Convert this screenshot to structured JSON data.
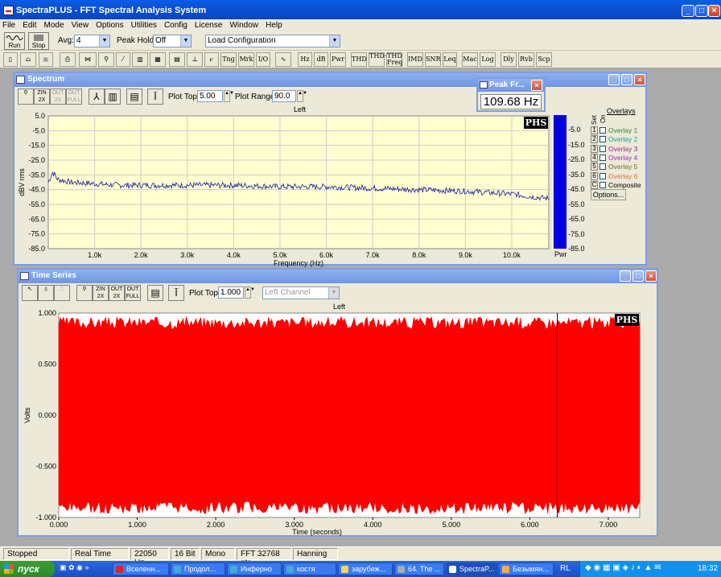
{
  "app": {
    "title": "SpectraPLUS - FFT Spectral Analysis System",
    "menu": [
      "File",
      "Edit",
      "Mode",
      "View",
      "Options",
      "Utilities",
      "Config",
      "License",
      "Window",
      "Help"
    ]
  },
  "toolbar": {
    "run_label": "Run",
    "stop_label": "Stop",
    "avg_label": "Avg:",
    "avg_value": "4",
    "peak_hold_label": "Peak Hold:",
    "peak_hold_value": "Off",
    "load_config_value": "Load Configuration",
    "buttons2": [
      "Tng",
      "Mrk",
      "I/O",
      "Hz",
      "dB",
      "Pwr",
      "THD",
      "THD+N",
      "THD Freq",
      "IMD",
      "SNR",
      "Leq",
      "Mac",
      "Log",
      "Dly",
      "Rvb",
      "Scp"
    ]
  },
  "spectrum": {
    "title": "Spectrum",
    "plot_top_label": "Plot Top:",
    "plot_top_value": "5.00",
    "plot_range_label": "Plot Range:",
    "plot_range_value": "90.0",
    "channel_label": "Left",
    "phs_badge": "PHS",
    "pwr_label": "Pwr",
    "overlays_title": "Overlays",
    "set_label": "Set",
    "on_label": "On",
    "overlays": [
      {
        "num": "1",
        "name": "Overlay 1",
        "color": "#2e8b2e"
      },
      {
        "num": "2",
        "name": "Overlay 2",
        "color": "#20a0a0"
      },
      {
        "num": "3",
        "name": "Overlay 3",
        "color": "#a020a0"
      },
      {
        "num": "4",
        "name": "Overlay 4",
        "color": "#b020d0"
      },
      {
        "num": "5",
        "name": "Overlay 5",
        "color": "#707020"
      },
      {
        "num": "6",
        "name": "Overlay 6",
        "color": "#e07030"
      },
      {
        "num": "C",
        "name": "Composite",
        "color": "#000000"
      }
    ],
    "options_label": "Options...",
    "bar_scale": [
      "-5.0",
      "-15.0",
      "-25.0",
      "-35.0",
      "-45.0",
      "-55.0",
      "-65.0",
      "-75.0",
      "-85.0"
    ],
    "bar_level_db": 5.0
  },
  "peak_window": {
    "title": "Peak Fr...",
    "value": "109.68 Hz"
  },
  "time_series": {
    "title": "Time Series",
    "plot_top_label": "Plot Top:",
    "plot_top_value": "1.000",
    "channel_select": "Left Channel",
    "channel_label": "Left",
    "phs_badge": "PHS"
  },
  "chart_data": [
    {
      "type": "line",
      "title": "Left",
      "xlabel": "Frequency (Hz)",
      "ylabel": "dBV rms",
      "xlim": [
        0,
        10800
      ],
      "ylim": [
        -85,
        5
      ],
      "grid": true,
      "x_ticks": [
        "1.0k",
        "2.0k",
        "3.0k",
        "4.0k",
        "5.0k",
        "6.0k",
        "7.0k",
        "8.0k",
        "9.0k",
        "10.0k"
      ],
      "y_ticks": [
        "5.0",
        "-5.0",
        "-15.0",
        "-25.0",
        "-35.0",
        "-45.0",
        "-55.0",
        "-65.0",
        "-75.0",
        "-85.0"
      ],
      "x": [
        0,
        100,
        200,
        500,
        1000,
        1500,
        2000,
        3000,
        4000,
        5000,
        6000,
        7000,
        8000,
        9000,
        10000,
        10500,
        10800
      ],
      "y": [
        -40,
        -33,
        -38,
        -40,
        -41,
        -42,
        -42,
        -42,
        -42,
        -43,
        -43,
        -44,
        -45,
        -46,
        -48,
        -50,
        -51
      ]
    },
    {
      "type": "area",
      "title": "Left",
      "xlabel": "Time (seconds)",
      "ylabel": "Volts",
      "xlim": [
        0,
        7.4
      ],
      "ylim": [
        -1,
        1
      ],
      "grid": false,
      "x_ticks": [
        "0.000",
        "1.000",
        "2.000",
        "3.000",
        "4.000",
        "5.000",
        "6.000",
        "7.000"
      ],
      "y_ticks": [
        "1.000",
        "0.500",
        "0.000",
        "-0.500",
        "-1.000"
      ],
      "envelope_upper": 0.88,
      "envelope_lower": -0.88,
      "cursor_x": 6.35,
      "color": "#ff0000"
    }
  ],
  "status": {
    "cells": [
      "Stopped",
      "Real Time",
      "22050 Hz",
      "16 Bit",
      "Mono",
      "FFT 32768 pts",
      "Hanning"
    ]
  },
  "taskbar": {
    "start_label": "пуск",
    "tasks": [
      "Вселенн...",
      "Продол...",
      "Инферно",
      "костя",
      "зарубеж...",
      "64. The ...",
      "SpectraP...",
      "Безымян..."
    ],
    "lang": "RL",
    "clock": "18:32"
  }
}
